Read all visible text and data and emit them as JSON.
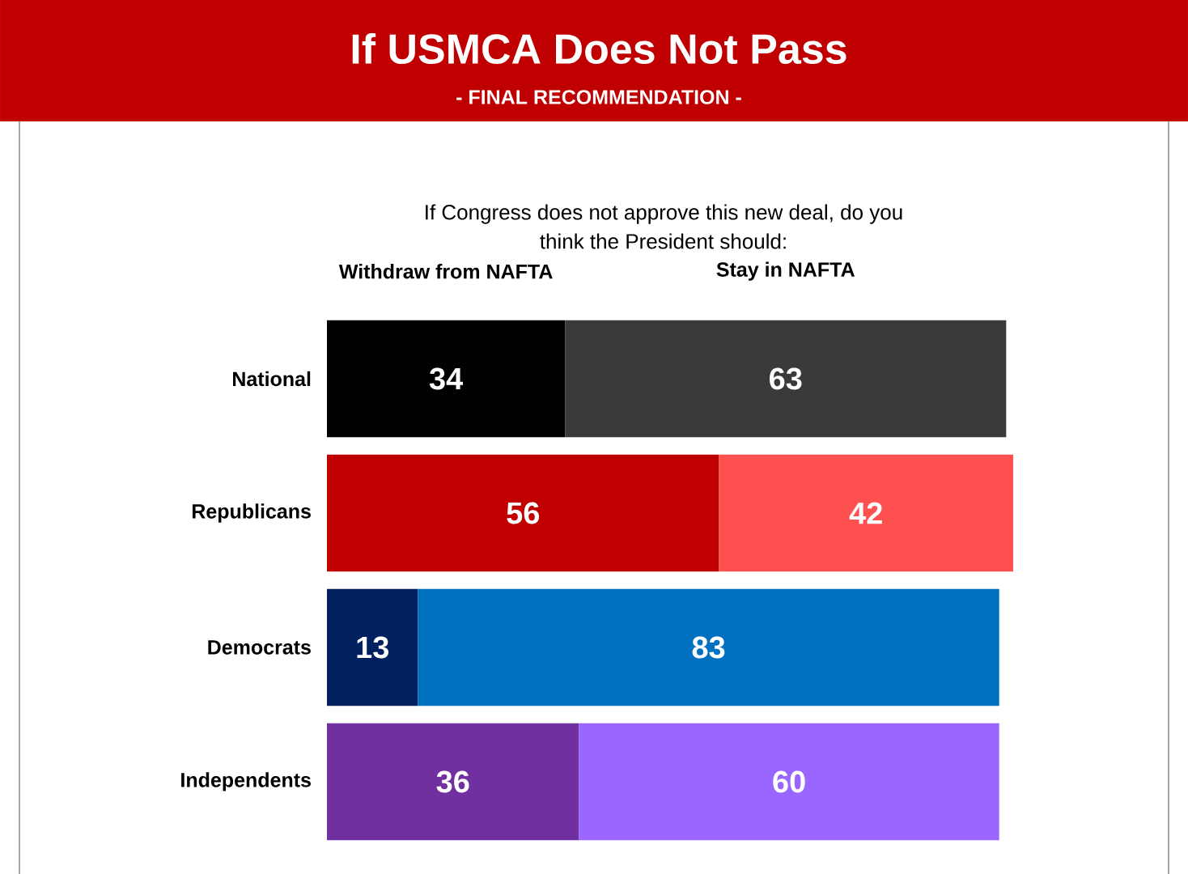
{
  "chart_data": {
    "type": "bar",
    "orientation": "horizontal",
    "stacked": true,
    "data_labels": true,
    "legend": "top",
    "title": "If USMCA Does Not Pass",
    "subtitle": "- FINAL RECOMMENDATION -",
    "annotations": [
      "If Congress does not approve this new deal, do you think the President should:"
    ],
    "categories": [
      "National",
      "Republicans",
      "Democrats",
      "Independents"
    ],
    "series": [
      {
        "name": "Withdraw from NAFTA",
        "values": [
          34,
          56,
          13,
          36
        ],
        "colors": [
          "#000000",
          "#c00000",
          "#002060",
          "#7030a0"
        ]
      },
      {
        "name": "Stay in NAFTA",
        "values": [
          63,
          42,
          83,
          60
        ],
        "colors": [
          "#3a3a3a",
          "#ff5050",
          "#0070c0",
          "#9966ff"
        ]
      }
    ]
  }
}
